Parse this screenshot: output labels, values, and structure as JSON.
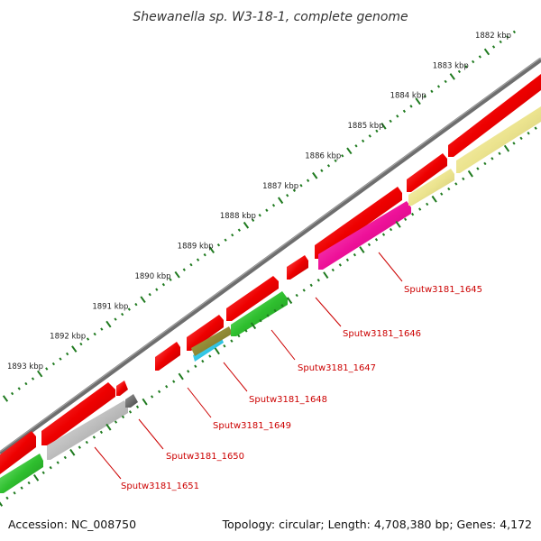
{
  "title": "Shewanella sp. W3-18-1, complete genome",
  "footer": {
    "accession": "Accession: NC_008750",
    "topology": "Topology: circular; Length: 4,708,380 bp; Genes: 4,172"
  },
  "colors": {
    "backbone": "#7a7a7a",
    "tick": "#1f7a1f",
    "cds_red": "#ee0000",
    "label_red": "#cc0000"
  },
  "kbp_labels": [
    "1882 kbp",
    "1883 kbp",
    "1884 kbp",
    "1885 kbp",
    "1886 kbp",
    "1887 kbp",
    "1888 kbp",
    "1889 kbp",
    "1890 kbp",
    "1891 kbp",
    "1892 kbp",
    "1893 kbp"
  ],
  "gene_labels": [
    "Sputw3181_1645",
    "Sputw3181_1646",
    "Sputw3181_1647",
    "Sputw3181_1648",
    "Sputw3181_1649",
    "Sputw3181_1650",
    "Sputw3181_1651"
  ]
}
